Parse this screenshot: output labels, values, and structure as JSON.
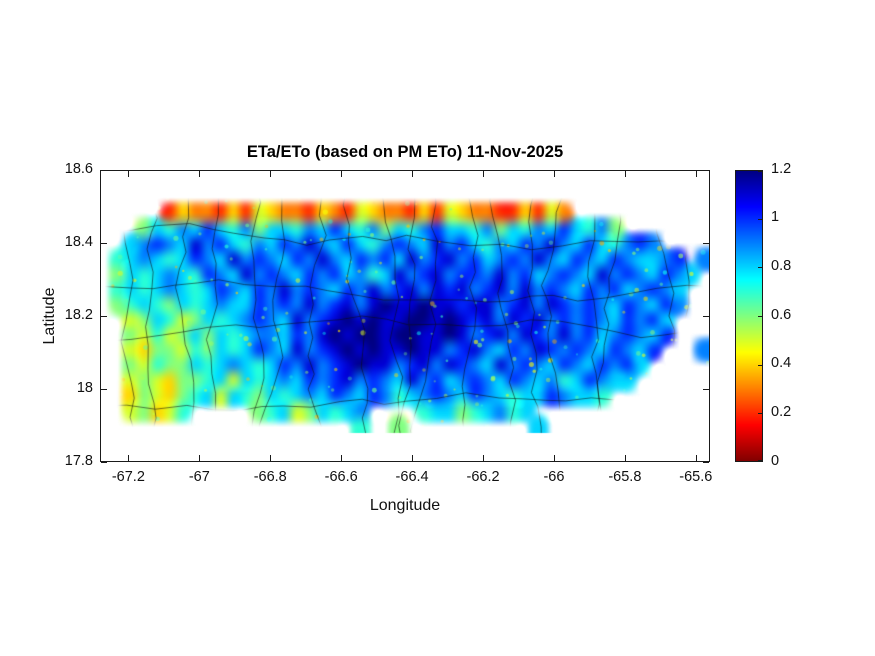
{
  "figure": {
    "title": "ETa/ETo (based on PM ETo) 11-Nov-2025",
    "xlabel": "Longitude",
    "ylabel": "Latitude"
  },
  "chart_data": {
    "type": "heatmap",
    "title": "ETa/ETo (based on PM ETo) 11-Nov-2025",
    "xlabel": "Longitude",
    "ylabel": "Latitude",
    "region": "Puerto Rico",
    "xlim": [
      -67.28,
      -65.56
    ],
    "ylim": [
      17.8,
      18.6
    ],
    "xticks": [
      -67.2,
      -67,
      -66.8,
      -66.6,
      -66.4,
      -66.2,
      -66,
      -65.8,
      -65.6
    ],
    "xtick_labels": [
      "-67.2",
      "-67",
      "-66.8",
      "-66.6",
      "-66.4",
      "-66.2",
      "-66",
      "-65.8",
      "-65.6"
    ],
    "yticks": [
      17.8,
      18,
      18.2,
      18.4,
      18.6
    ],
    "ytick_labels": [
      "17.8",
      "18",
      "18.2",
      "18.4",
      "18.6"
    ],
    "grid_on": false,
    "colormap": "jet_reversed",
    "colorbar": {
      "min": 0,
      "max": 1.2,
      "ticks": [
        0,
        0.2,
        0.4,
        0.6,
        0.8,
        1,
        1.2
      ],
      "tick_labels": [
        "0",
        "0.2",
        "0.4",
        "0.6",
        "0.8",
        "1",
        "1.2"
      ],
      "position": "right"
    },
    "features": {
      "municipal_boundaries": true,
      "ocean": "white"
    },
    "grid": {
      "lon_min": -67.28,
      "lon_max": -65.56,
      "lat_min": 17.88,
      "lat_max": 18.54,
      "ncols": 48,
      "nrows": 16,
      "encoding": "rows listed north to south; each char is one cell; dot = no data (ocean); 0-9 = ratio 0.0-0.9; a = 1.0; b = 1.1; c = 1.2",
      "rows": [
        "................................................",
        ".....24332425433243254332425433224253...........",
        "...68798a879688798a8796879a887968798a8796.......",
        "..89a98b9a8798a9b98a879a98b9a8798a9b98a879a9....",
        ".789878a98b9a98a9b98a9a8b9ab9a89a9b98a98a9889a.9",
        ".6878987a98b9a98a9a8978b9ab9aa9b9a89a98b9a98a98.",
        ".78789878a98a9b9a98a9b9ab9bab9ab9b9a98a9a89a98..",
        ".67876878988a9a9b9ab9bcbbcbbabb9ab9ba9a98a98a9..",
        "..5687568789a98b9abcbcbbccbcbab9bab9a9a98a9a8...",
        "..6575686878998a9bcbccbccbbcb9ab9ba9b9a89a98a...",
        "..5466576878a98b9abcbcbbcbb9ab98a9ba9a98a98a...9",
        "..657668789878a9b9abcbb9ab9ba98b9a98a98a9a8.....",
        "..56546678587898a9ab9a98b9a89a98a98978a988......",
        "..4654678587687898a98a9789a98a98788a9887........",
        "..56457.....678568789....788678978..............",
        "....................7..6..........8............."
      ]
    }
  }
}
